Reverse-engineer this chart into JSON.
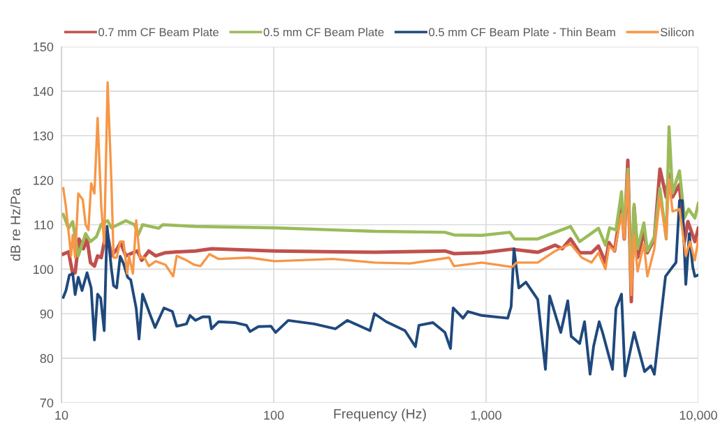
{
  "chart_data": {
    "type": "line",
    "xlabel": "Frequency (Hz)",
    "ylabel": "dB re Hz/Pa",
    "log": "x",
    "xlim": [
      10,
      10000
    ],
    "xticks": [
      10,
      100,
      {
        "value": 1000,
        "label": "1,000"
      },
      {
        "value": 10000,
        "label": "10,000"
      }
    ],
    "ylim": [
      70,
      150
    ],
    "yticks": [
      70,
      80,
      90,
      100,
      110,
      120,
      130,
      140,
      150
    ],
    "grid": true,
    "legend": "top",
    "marker": "none",
    "line_style": "solid",
    "series": [
      {
        "name": "0.7 mm CF Beam Plate",
        "color": "#c0504d",
        "x": [
          10.2,
          10.8,
          11.3,
          11.6,
          12.1,
          12.7,
          13.2,
          13.7,
          14.3,
          14.8,
          15.4,
          16.0,
          16.4,
          17.2,
          18.3,
          19.0,
          20.1,
          21.7,
          22.8,
          23.9,
          25.8,
          27.8,
          30.9,
          34.9,
          42.8,
          50.9,
          101,
          300,
          640,
          706,
          956,
          1323,
          1752,
          2117,
          2284,
          2500,
          2760,
          3139,
          3385,
          3652,
          3793,
          4031,
          4346,
          4480,
          4654,
          4833,
          4982,
          5174,
          5539,
          5753,
          6205,
          6594,
          7059,
          7275,
          7556,
          8149,
          8597,
          8930,
          9630,
          10000
        ],
        "values": [
          103.4,
          103.9,
          99,
          99.2,
          106.8,
          104.6,
          106.8,
          101.5,
          100.7,
          103,
          102.6,
          106.8,
          108.3,
          103,
          104.6,
          106,
          103,
          103.7,
          104.1,
          102,
          104.1,
          103,
          103.7,
          103.9,
          104.1,
          104.6,
          104.1,
          103.8,
          104.1,
          103.5,
          103.7,
          104.5,
          103.8,
          105.4,
          104.6,
          106.8,
          103.7,
          103.7,
          105.2,
          101.5,
          106,
          104.1,
          114.6,
          106.8,
          124.5,
          92.7,
          114,
          102.6,
          108.5,
          103.7,
          106.8,
          122.5,
          116.2,
          121.4,
          116.2,
          119,
          106.2,
          110.7,
          106.2,
          109.2
        ]
      },
      {
        "name": "0.5 mm CF Beam Plate",
        "color": "#9bbb59",
        "x": [
          10.2,
          10.8,
          11.3,
          12.0,
          13.0,
          13.7,
          14.6,
          15.4,
          16.5,
          17.2,
          20.1,
          22.1,
          23.0,
          24.1,
          28.7,
          30.0,
          42.8,
          101,
          300,
          640,
          706,
          956,
          1294,
          1364,
          1752,
          2117,
          2500,
          2760,
          3385,
          3652,
          3822,
          4092,
          4346,
          4480,
          4654,
          4833,
          4982,
          5174,
          5539,
          5753,
          6205,
          6594,
          7059,
          7275,
          7556,
          8149,
          8597,
          8997,
          9630,
          10000
        ],
        "values": [
          112.3,
          109.2,
          110.7,
          103,
          108,
          106.2,
          107.3,
          110.1,
          110.9,
          109.3,
          110.9,
          110,
          107.7,
          110,
          109.2,
          110,
          109.6,
          109.3,
          108.5,
          108.3,
          107.7,
          107.6,
          108.3,
          106.8,
          106.8,
          108.3,
          109.6,
          106.2,
          109.2,
          105.4,
          109.3,
          108.8,
          117.4,
          108.3,
          122.5,
          96,
          114.6,
          104.6,
          110.4,
          104.1,
          107.3,
          118.2,
          106.8,
          132,
          117.1,
          122.1,
          111.5,
          113.5,
          111.5,
          114.8
        ]
      },
      {
        "name": "0.5 mm CF Beam Plate - Thin Beam",
        "color": "#1f497d",
        "x": [
          10.2,
          10.5,
          10.9,
          11.3,
          11.6,
          12.0,
          12.5,
          13.2,
          13.8,
          14.3,
          14.8,
          15.3,
          15.9,
          16.4,
          17.2,
          17.6,
          18.2,
          18.9,
          19.6,
          20.5,
          21.2,
          22.5,
          23.2,
          24.1,
          26.2,
          27.6,
          30.4,
          33.3,
          34.9,
          38.8,
          40.3,
          42.8,
          46.2,
          49.8,
          50.9,
          55.0,
          65.9,
          74.4,
          77.3,
          84.6,
          97.0,
          102,
          117,
          155,
          195,
          222,
          284,
          298,
          339,
          415,
          465,
          483,
          562,
          640,
          680,
          700,
          779,
          821,
          956,
          1265,
          1313,
          1354,
          1427,
          1540,
          1752,
          1904,
          1993,
          2249,
          2426,
          2519,
          2760,
          2910,
          3091,
          3211,
          3411,
          3543,
          3940,
          4092,
          4346,
          4514,
          4982,
          5581,
          5974,
          6205,
          7005,
          7556,
          7847,
          8149,
          8403,
          8729,
          9064,
          9412,
          9630,
          10000
        ],
        "values": [
          93.7,
          95.2,
          98.7,
          99,
          94.3,
          98.2,
          95.2,
          99.2,
          95.8,
          84.1,
          94.4,
          93.5,
          86.2,
          109.6,
          100,
          96.3,
          95.8,
          102.9,
          101.3,
          98.2,
          97.6,
          91.2,
          84.3,
          94.4,
          89.7,
          86.9,
          91.3,
          90.5,
          87.2,
          87.7,
          89.6,
          88.5,
          89.3,
          89.3,
          86.6,
          88.2,
          88,
          87.4,
          86,
          87.1,
          87.2,
          85.8,
          88.5,
          87.7,
          86.6,
          88.5,
          86.2,
          90,
          88.2,
          86.2,
          82.6,
          87.4,
          88,
          85.8,
          82.2,
          91.3,
          89,
          90.5,
          89.6,
          89,
          91.6,
          104.6,
          95.8,
          97.1,
          93.2,
          77.5,
          94,
          85.8,
          92.9,
          84.9,
          83.3,
          88.2,
          76.4,
          82.7,
          88.2,
          85.7,
          77.5,
          91.2,
          94.4,
          76,
          85.8,
          77,
          78.3,
          76.4,
          98.4,
          100.5,
          101.5,
          115.4,
          115.4,
          96.6,
          108,
          100.5,
          98.4,
          98.7
        ]
      },
      {
        "name": "Silicon",
        "color": "#f79646",
        "x": [
          10.2,
          10.5,
          11.1,
          11.3,
          11.6,
          12.0,
          12.6,
          13.0,
          13.4,
          13.8,
          14.3,
          14.8,
          15.4,
          15.9,
          16.5,
          17.2,
          17.6,
          18.2,
          18.9,
          19.6,
          20.4,
          20.8,
          21.7,
          22.5,
          23.4,
          24.6,
          25.8,
          27.8,
          30.9,
          33.6,
          34.9,
          38.8,
          42.2,
          45.1,
          49.8,
          55.0,
          76.7,
          101,
          190,
          300,
          438,
          670,
          706,
          956,
          1323,
          1395,
          1752,
          2117,
          2500,
          2823,
          3139,
          3385,
          3652,
          3793,
          4031,
          4346,
          4480,
          4654,
          4833,
          4982,
          5174,
          5539,
          5753,
          6205,
          6594,
          7059,
          7275,
          7556,
          8149,
          8729,
          9131,
          9630,
          10000
        ],
        "values": [
          118.2,
          114,
          103,
          107.7,
          102.6,
          117,
          115.6,
          110,
          108.8,
          119.3,
          117,
          134,
          114,
          105.7,
          142,
          119.3,
          102.6,
          102.6,
          106.2,
          106.2,
          99,
          103,
          99,
          111,
          102.6,
          102.6,
          100.7,
          101.8,
          101,
          98.4,
          103,
          102,
          101,
          100.7,
          103.4,
          102.3,
          102.6,
          101.8,
          102.3,
          101.5,
          101.3,
          102.6,
          100.7,
          101.5,
          100.5,
          101.5,
          101.5,
          104.1,
          105.7,
          102.6,
          101.5,
          103.7,
          100,
          105.2,
          104.1,
          112.4,
          106.8,
          121.4,
          94.2,
          107.8,
          99.5,
          105.7,
          98.4,
          104.6,
          116.2,
          106.8,
          120.3,
          113,
          113.5,
          103,
          106.2,
          102,
          106.8
        ]
      }
    ]
  }
}
